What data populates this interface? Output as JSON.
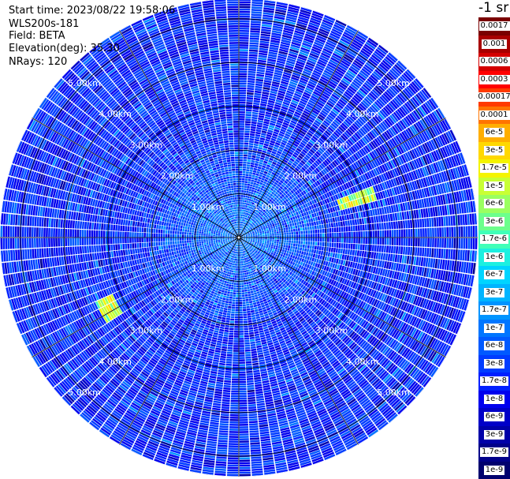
{
  "header": {
    "start_time": "Start time: 2023/08/22 19:58:06",
    "instrument": "WLS200s-181",
    "field": "Field: BETA",
    "elevation": "Elevation(deg): 35.30",
    "nrays": "NRays: 120"
  },
  "colorbar": {
    "title": "-1 sr",
    "labels": [
      "0.0017",
      "0.001",
      "0.0006",
      "0.0003",
      "0.00017",
      "0.0001",
      "6e-5",
      "3e-5",
      "1.7e-5",
      "1e-5",
      "6e-6",
      "3e-6",
      "1.7e-6",
      "1e-6",
      "6e-7",
      "3e-7",
      "1.7e-7",
      "1e-7",
      "6e-8",
      "3e-8",
      "1.7e-8",
      "1e-8",
      "6e-9",
      "3e-9",
      "1.7e-9",
      "1e-9"
    ],
    "colors": [
      "#7a0000",
      "#a80000",
      "#d40000",
      "#ff0000",
      "#ff3a00",
      "#ff7400",
      "#ffae00",
      "#ffd800",
      "#f4f400",
      "#c8ff34",
      "#9aff60",
      "#6cff8c",
      "#40ffb8",
      "#1cf0e0",
      "#00d4ff",
      "#00b4ff",
      "#0094ff",
      "#0076ff",
      "#005aff",
      "#003cff",
      "#0020ff",
      "#0000ee",
      "#0000c8",
      "#0000a8",
      "#00008a",
      "#00006e"
    ]
  },
  "chart_data": {
    "type": "heatmap",
    "projection": "polar PPI",
    "field": "BETA",
    "n_rays": 120,
    "elevation_deg": 35.3,
    "range_rings_km": [
      1,
      2,
      3,
      4,
      5
    ],
    "ring_labels": [
      "1.00km",
      "2.00km",
      "3.00km",
      "4.00km",
      "5.00km"
    ],
    "max_range_km": 5.0,
    "spokes_deg": [
      0,
      30,
      60,
      90,
      120,
      150
    ],
    "scale": "log",
    "value_range": [
      1e-09,
      0.0017
    ],
    "dominant_level": "1.7e-8",
    "near_range_level": "1e-7",
    "features": [
      {
        "azimuth_deg_from_east_ccw": 18,
        "range_km": [
          2.2,
          3.0
        ],
        "peak": "3e-5"
      },
      {
        "azimuth_deg_from_east_ccw": 209,
        "range_km": [
          2.9,
          3.3
        ],
        "peak": "3e-5"
      }
    ]
  }
}
